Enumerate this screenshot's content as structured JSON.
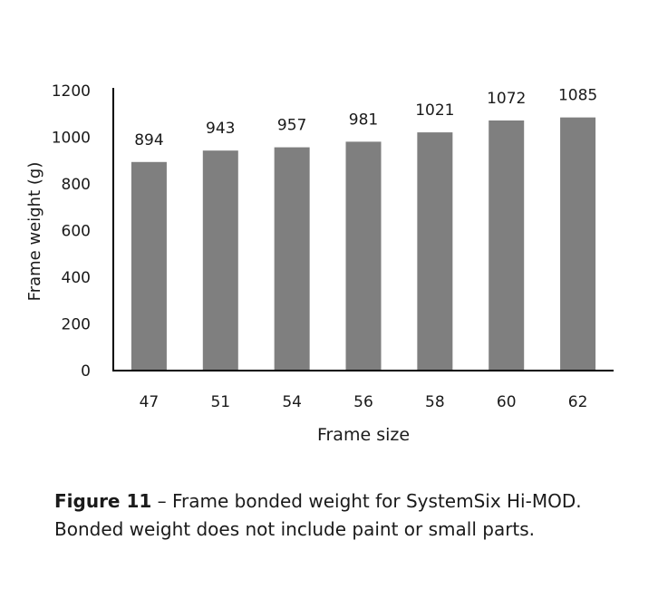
{
  "chart_data": {
    "type": "bar",
    "categories": [
      "47",
      "51",
      "54",
      "56",
      "58",
      "60",
      "62"
    ],
    "values": [
      894,
      943,
      957,
      981,
      1021,
      1072,
      1085
    ],
    "data_labels": [
      "894",
      "943",
      "957",
      "981",
      "1021",
      "1072",
      "1085"
    ],
    "title": "",
    "xlabel": "Frame size",
    "ylabel": "Frame weight (g)",
    "ylim": [
      0,
      1200
    ],
    "yticks": [
      0,
      200,
      400,
      600,
      800,
      1000,
      1200
    ],
    "ytick_labels": [
      "0",
      "200",
      "400",
      "600",
      "800",
      "1000",
      "1200"
    ],
    "grid": false,
    "bar_color": "#7f7f7f"
  },
  "caption": {
    "label": "Figure 11",
    "text": " – Frame bonded weight for SystemSix Hi-MOD. Bonded weight does not include paint or small parts."
  }
}
